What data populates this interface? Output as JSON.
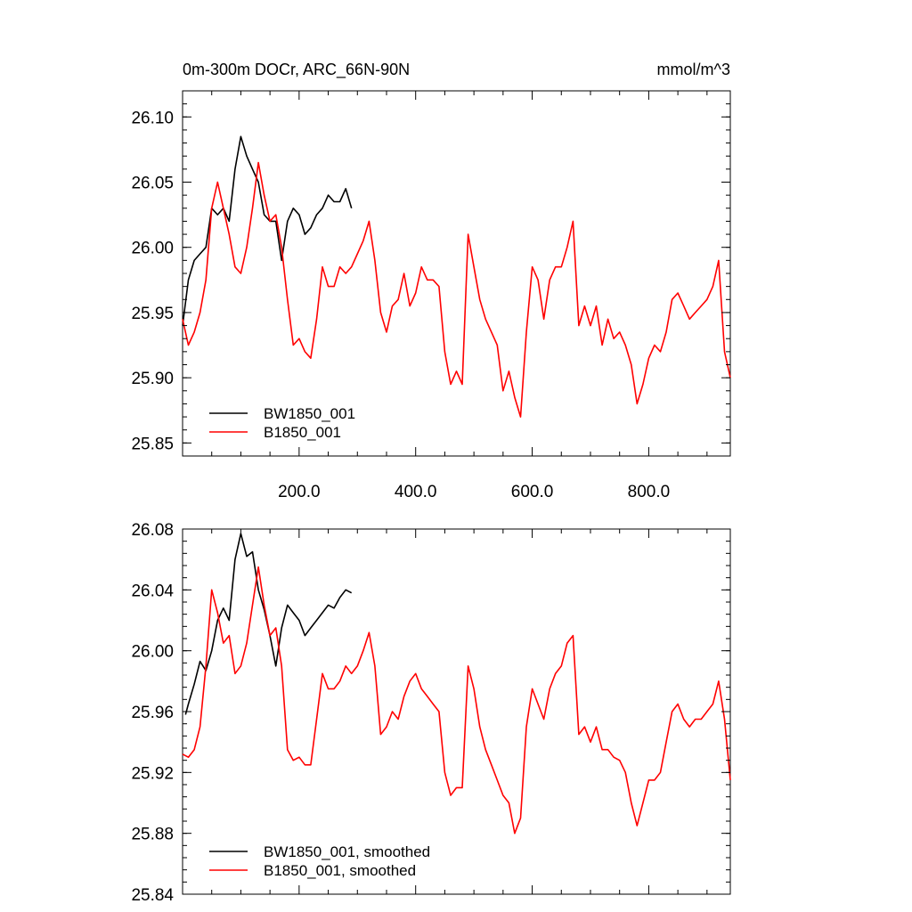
{
  "chart_data": [
    {
      "type": "line",
      "title": "0m-300m DOCr, ARC_66N-90N",
      "units": "mmol/m^3",
      "xlabel": "",
      "ylabel": "",
      "xlim": [
        0,
        940
      ],
      "ylim": [
        25.84,
        26.12
      ],
      "x_ticks": [
        200,
        400,
        600,
        800
      ],
      "x_tick_labels": [
        "200.0",
        "400.0",
        "600.0",
        "800.0"
      ],
      "y_ticks": [
        25.85,
        25.9,
        25.95,
        26.0,
        26.05,
        26.1
      ],
      "y_tick_labels": [
        "25.85",
        "25.90",
        "25.95",
        "26.00",
        "26.05",
        "26.10"
      ],
      "grid": false,
      "legend": "bottom-left",
      "series": [
        {
          "name": "BW1850_001",
          "color": "#000000",
          "x": [
            0,
            10,
            20,
            30,
            40,
            50,
            60,
            70,
            80,
            90,
            100,
            110,
            120,
            130,
            140,
            150,
            160,
            170,
            180,
            190,
            200,
            210,
            220,
            230,
            240,
            250,
            260,
            270,
            280,
            290
          ],
          "y": [
            25.94,
            25.975,
            25.99,
            25.995,
            26.0,
            26.03,
            26.025,
            26.03,
            26.02,
            26.06,
            26.085,
            26.07,
            26.06,
            26.05,
            26.025,
            26.02,
            26.02,
            25.99,
            26.02,
            26.03,
            26.025,
            26.01,
            26.015,
            26.025,
            26.03,
            26.04,
            26.035,
            26.035,
            26.045,
            26.03
          ]
        },
        {
          "name": "B1850_001",
          "color": "#ff0000",
          "x": [
            0,
            10,
            20,
            30,
            40,
            50,
            60,
            70,
            80,
            90,
            100,
            110,
            120,
            130,
            140,
            150,
            160,
            170,
            180,
            190,
            200,
            210,
            220,
            230,
            240,
            250,
            260,
            270,
            280,
            290,
            300,
            310,
            320,
            330,
            340,
            350,
            360,
            370,
            380,
            390,
            400,
            410,
            420,
            430,
            440,
            450,
            460,
            470,
            480,
            490,
            500,
            510,
            520,
            530,
            540,
            550,
            560,
            570,
            580,
            590,
            600,
            610,
            620,
            630,
            640,
            650,
            660,
            670,
            680,
            690,
            700,
            710,
            720,
            730,
            740,
            750,
            760,
            770,
            780,
            790,
            800,
            810,
            820,
            830,
            840,
            850,
            860,
            870,
            880,
            890,
            900,
            910,
            920,
            930,
            940
          ],
          "y": [
            25.945,
            25.925,
            25.935,
            25.95,
            25.975,
            26.03,
            26.05,
            26.03,
            26.01,
            25.985,
            25.98,
            26.0,
            26.03,
            26.065,
            26.04,
            26.02,
            26.025,
            26.0,
            25.96,
            25.925,
            25.93,
            25.92,
            25.915,
            25.945,
            25.985,
            25.97,
            25.97,
            25.985,
            25.98,
            25.985,
            25.995,
            26.005,
            26.02,
            25.99,
            25.95,
            25.935,
            25.955,
            25.96,
            25.98,
            25.955,
            25.965,
            25.985,
            25.975,
            25.975,
            25.97,
            25.92,
            25.895,
            25.905,
            25.895,
            26.01,
            25.985,
            25.96,
            25.945,
            25.935,
            25.925,
            25.89,
            25.905,
            25.885,
            25.87,
            25.935,
            25.985,
            25.975,
            25.945,
            25.975,
            25.985,
            25.985,
            26.0,
            26.02,
            25.94,
            25.955,
            25.94,
            25.955,
            25.925,
            25.945,
            25.93,
            25.935,
            25.925,
            25.91,
            25.88,
            25.895,
            25.915,
            25.925,
            25.92,
            25.935,
            25.96,
            25.965,
            25.955,
            25.945,
            25.95,
            25.955,
            25.96,
            25.97,
            25.99,
            25.92,
            25.9
          ]
        }
      ]
    },
    {
      "type": "line",
      "title": "",
      "xlabel": "",
      "ylabel": "",
      "xlim": [
        0,
        940
      ],
      "ylim": [
        25.84,
        26.08
      ],
      "x_ticks": [
        200,
        400,
        600,
        800
      ],
      "x_tick_labels": [
        "",
        "",
        "",
        ""
      ],
      "y_ticks": [
        25.84,
        25.88,
        25.92,
        25.96,
        26.0,
        26.04,
        26.08
      ],
      "y_tick_labels": [
        "25.84",
        "25.88",
        "25.92",
        "25.96",
        "26.00",
        "26.04",
        "26.08"
      ],
      "grid": false,
      "legend": "bottom-left",
      "series": [
        {
          "name": "BW1850_001, smoothed",
          "color": "#000000",
          "x": [
            5,
            10,
            20,
            30,
            40,
            50,
            60,
            70,
            80,
            90,
            100,
            110,
            120,
            130,
            140,
            150,
            160,
            170,
            180,
            190,
            200,
            210,
            220,
            230,
            240,
            250,
            260,
            270,
            280,
            290
          ],
          "y": [
            25.958,
            25.965,
            25.978,
            25.993,
            25.987,
            26.0,
            26.02,
            26.028,
            26.02,
            26.06,
            26.077,
            26.062,
            26.065,
            26.04,
            26.027,
            26.01,
            25.99,
            26.015,
            26.03,
            26.025,
            26.02,
            26.01,
            26.015,
            26.02,
            26.025,
            26.03,
            26.028,
            26.035,
            26.04,
            26.038
          ]
        },
        {
          "name": "B1850_001, smoothed",
          "color": "#ff0000",
          "x": [
            0,
            10,
            20,
            30,
            40,
            50,
            60,
            70,
            80,
            90,
            100,
            110,
            120,
            130,
            140,
            150,
            160,
            170,
            180,
            190,
            200,
            210,
            220,
            230,
            240,
            250,
            260,
            270,
            280,
            290,
            300,
            310,
            320,
            330,
            340,
            350,
            360,
            370,
            380,
            390,
            400,
            410,
            420,
            430,
            440,
            450,
            460,
            470,
            480,
            490,
            500,
            510,
            520,
            530,
            540,
            550,
            560,
            570,
            580,
            590,
            600,
            610,
            620,
            630,
            640,
            650,
            660,
            670,
            680,
            690,
            700,
            710,
            720,
            730,
            740,
            750,
            760,
            770,
            780,
            790,
            800,
            810,
            820,
            830,
            840,
            850,
            860,
            870,
            880,
            890,
            900,
            910,
            920,
            930,
            940
          ],
          "y": [
            25.932,
            25.93,
            25.935,
            25.95,
            25.99,
            26.04,
            26.025,
            26.005,
            26.01,
            25.985,
            25.99,
            26.005,
            26.03,
            26.055,
            26.03,
            26.01,
            26.015,
            25.99,
            25.935,
            25.928,
            25.93,
            25.925,
            25.925,
            25.955,
            25.985,
            25.975,
            25.975,
            25.98,
            25.99,
            25.985,
            25.99,
            26.0,
            26.012,
            25.99,
            25.945,
            25.95,
            25.96,
            25.955,
            25.97,
            25.98,
            25.985,
            25.975,
            25.97,
            25.965,
            25.96,
            25.92,
            25.905,
            25.91,
            25.91,
            25.99,
            25.975,
            25.95,
            25.935,
            25.925,
            25.915,
            25.905,
            25.9,
            25.88,
            25.89,
            25.95,
            25.975,
            25.965,
            25.955,
            25.975,
            25.985,
            25.99,
            26.005,
            26.01,
            25.945,
            25.95,
            25.94,
            25.95,
            25.935,
            25.935,
            25.93,
            25.928,
            25.92,
            25.9,
            25.885,
            25.9,
            25.915,
            25.915,
            25.92,
            25.94,
            25.96,
            25.965,
            25.955,
            25.95,
            25.955,
            25.955,
            25.96,
            25.965,
            25.98,
            25.955,
            25.915
          ]
        }
      ]
    }
  ]
}
